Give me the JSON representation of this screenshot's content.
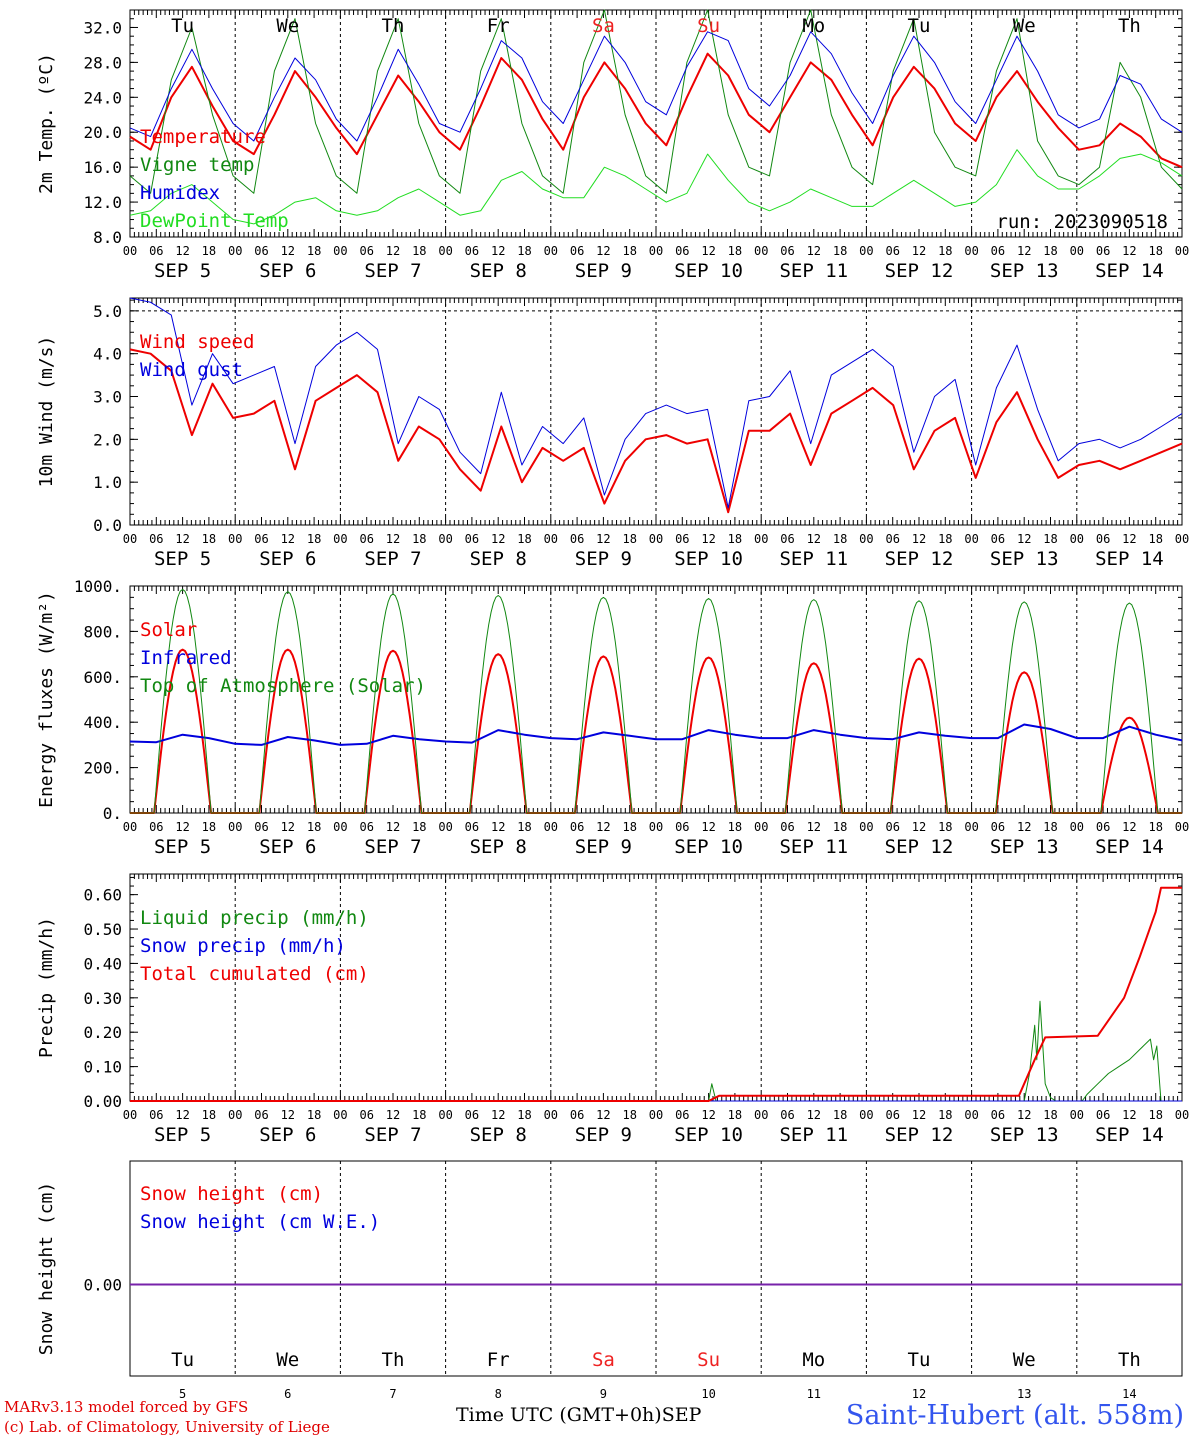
{
  "footer": {
    "credit_line1": "MARv3.13 model forced by GFS",
    "credit_line2": "(c) Lab. of Climatology, University of Liege",
    "time_axis_label": "Time UTC (GMT+0h)SEP",
    "station": "Saint-Hubert (alt. 558m)"
  },
  "colors": {
    "red": "#ee0000",
    "blue": "#0000dd",
    "dark_green": "#118811",
    "light_green": "#22dd22",
    "purple": "#7722aa",
    "weekend": "#ee2222"
  },
  "chart_data": [
    {
      "type": "line",
      "ylabel": "2m Temp. (ºC)",
      "ylim": [
        8,
        34
      ],
      "yticks": [
        "8.0",
        "12.0",
        "16.0",
        "20.0",
        "24.0",
        "28.0",
        "32.0"
      ],
      "hour_ticks": [
        "00",
        "06",
        "12",
        "18"
      ],
      "days": [
        "SEP  5",
        "SEP  6",
        "SEP  7",
        "SEP  8",
        "SEP  9",
        "SEP 10",
        "SEP 11",
        "SEP 12",
        "SEP 13",
        "SEP 14"
      ],
      "weekdays": [
        "Tu",
        "We",
        "Th",
        "Fr",
        "Sa",
        "Su",
        "Mo",
        "Tu",
        "We",
        "Th"
      ],
      "weekend_indices": [
        4,
        5
      ],
      "annotation": "run: 2023090518",
      "legend": [
        "Temperature",
        "Vigne temp",
        "Humidex",
        "DewPoint Temp"
      ],
      "series": [
        {
          "name": "Temperature",
          "color": "red",
          "width": 2,
          "values": [
            19.5,
            18,
            24,
            27.5,
            23,
            19,
            17.5,
            22,
            27,
            24,
            20.5,
            17.5,
            22,
            26.5,
            23.5,
            20,
            18,
            23,
            28.5,
            26,
            21.5,
            18,
            24,
            28,
            25,
            21,
            18.5,
            24,
            29,
            26.5,
            22,
            20,
            24,
            28,
            26,
            22,
            18.5,
            24,
            27.5,
            25,
            21,
            19,
            24,
            27,
            23.5,
            20.5,
            18,
            18.5,
            21,
            19.5,
            17,
            16
          ]
        },
        {
          "name": "Vigne temp",
          "color": "dark_green",
          "width": 1,
          "values": [
            15,
            13,
            26,
            32,
            22,
            15,
            13,
            27,
            33,
            21,
            15,
            13,
            27,
            33,
            21,
            15,
            13,
            27,
            33,
            21,
            15,
            13,
            28,
            34,
            22,
            15,
            13,
            28,
            34,
            22,
            16,
            15,
            28,
            34,
            22,
            16,
            14,
            27,
            33,
            20,
            16,
            15,
            27,
            33,
            19,
            15,
            14,
            16,
            28,
            24,
            16,
            13.5
          ]
        },
        {
          "name": "Humidex",
          "color": "blue",
          "width": 1,
          "values": [
            20.5,
            19.5,
            25,
            29.5,
            25,
            21,
            19,
            24,
            28.5,
            26,
            21.5,
            19,
            24,
            29.5,
            25.5,
            21,
            20,
            25,
            30.5,
            28.5,
            23.5,
            21,
            26,
            31,
            28,
            23.5,
            22,
            27.5,
            31.5,
            30.5,
            25,
            23,
            26.5,
            31.5,
            29,
            24.5,
            21,
            26.5,
            31,
            28,
            23.5,
            21,
            26,
            31,
            27,
            22,
            20.5,
            21.5,
            26.5,
            25.5,
            21.5,
            20
          ]
        },
        {
          "name": "DewPoint Temp",
          "color": "light_green",
          "width": 1,
          "values": [
            10.5,
            11,
            13,
            14,
            12,
            10,
            9.5,
            10.5,
            12,
            12.5,
            11,
            10.5,
            11,
            12.5,
            13.5,
            12,
            10.5,
            11,
            14.5,
            15.5,
            13.5,
            12.5,
            12.5,
            16,
            15,
            13.5,
            12,
            13,
            17.5,
            14.5,
            12,
            11,
            12,
            13.5,
            12.5,
            11.5,
            11.5,
            13,
            14.5,
            13,
            11.5,
            12,
            14,
            18,
            15,
            13.5,
            13.5,
            15,
            17,
            17.5,
            16.5,
            15
          ]
        }
      ]
    },
    {
      "type": "line",
      "ylabel": "10m Wind (m/s)",
      "ylim": [
        0,
        5.3
      ],
      "yticks": [
        "0.0",
        "1.0",
        "2.0",
        "3.0",
        "4.0",
        "5.0"
      ],
      "dashed_at": 5.0,
      "hour_ticks": [
        "00",
        "06",
        "12",
        "18"
      ],
      "days": [
        "SEP  5",
        "SEP  6",
        "SEP  7",
        "SEP  8",
        "SEP  9",
        "SEP 10",
        "SEP 11",
        "SEP 12",
        "SEP 13",
        "SEP 14"
      ],
      "legend": [
        "Wind speed",
        "Wind gust"
      ],
      "series": [
        {
          "name": "Wind speed",
          "color": "red",
          "width": 2,
          "values": [
            4.1,
            4.0,
            3.6,
            2.1,
            3.3,
            2.5,
            2.6,
            2.9,
            1.3,
            2.9,
            3.2,
            3.5,
            3.1,
            1.5,
            2.3,
            2.0,
            1.3,
            0.8,
            2.3,
            1.0,
            1.8,
            1.5,
            1.8,
            0.5,
            1.5,
            2.0,
            2.1,
            1.9,
            2.0,
            0.3,
            2.2,
            2.2,
            2.6,
            1.4,
            2.6,
            2.9,
            3.2,
            2.8,
            1.3,
            2.2,
            2.5,
            1.1,
            2.4,
            3.1,
            2.0,
            1.1,
            1.4,
            1.5,
            1.3,
            1.5,
            1.7,
            1.9
          ]
        },
        {
          "name": "Wind gust",
          "color": "blue",
          "width": 1,
          "values": [
            5.3,
            5.2,
            4.9,
            2.8,
            4.0,
            3.3,
            3.5,
            3.7,
            1.9,
            3.7,
            4.2,
            4.5,
            4.1,
            1.9,
            3.0,
            2.7,
            1.7,
            1.2,
            3.1,
            1.4,
            2.3,
            1.9,
            2.5,
            0.7,
            2.0,
            2.6,
            2.8,
            2.6,
            2.7,
            0.4,
            2.9,
            3.0,
            3.6,
            1.9,
            3.5,
            3.8,
            4.1,
            3.7,
            1.7,
            3.0,
            3.4,
            1.4,
            3.2,
            4.2,
            2.7,
            1.5,
            1.9,
            2.0,
            1.8,
            2.0,
            2.3,
            2.6
          ]
        }
      ]
    },
    {
      "type": "line",
      "ylabel": "Energy fluxes (W/m²)",
      "ylim": [
        0,
        1000
      ],
      "yticks": [
        "0.",
        "200.",
        "400.",
        "600.",
        "800.",
        "1000."
      ],
      "hour_ticks": [
        "00",
        "06",
        "12",
        "18"
      ],
      "days": [
        "SEP  5",
        "SEP  6",
        "SEP  7",
        "SEP  8",
        "SEP  9",
        "SEP 10",
        "SEP 11",
        "SEP 12",
        "SEP 13",
        "SEP 14"
      ],
      "legend": [
        "Solar",
        "Infrared",
        "Top of Atmosphere (Solar)"
      ],
      "solar_day_start_hour": 5.5,
      "solar_day_end_hour": 18.5,
      "series": [
        {
          "name": "Solar",
          "color": "red",
          "width": 2,
          "daily_peak": [
            720,
            720,
            715,
            700,
            690,
            685,
            660,
            680,
            620,
            420
          ]
        },
        {
          "name": "Infrared",
          "color": "blue",
          "width": 2,
          "values": [
            315,
            312,
            345,
            330,
            305,
            300,
            335,
            320,
            300,
            305,
            340,
            325,
            315,
            310,
            365,
            345,
            330,
            325,
            355,
            340,
            325,
            325,
            365,
            345,
            330,
            330,
            365,
            345,
            330,
            325,
            355,
            340,
            330,
            330,
            390,
            370,
            330,
            330,
            380,
            345,
            320
          ]
        },
        {
          "name": "Top of Atmosphere (Solar)",
          "color": "dark_green",
          "width": 1,
          "daily_peak": [
            985,
            975,
            965,
            958,
            950,
            945,
            940,
            935,
            930,
            925
          ]
        }
      ]
    },
    {
      "type": "line",
      "ylabel": "Precip (mm/h)",
      "ylim": [
        0,
        0.66
      ],
      "yticks": [
        "0.00",
        "0.10",
        "0.20",
        "0.30",
        "0.40",
        "0.50",
        "0.60"
      ],
      "hour_ticks": [
        "00",
        "06",
        "12",
        "18"
      ],
      "days": [
        "SEP  5",
        "SEP  6",
        "SEP  7",
        "SEP  8",
        "SEP  9",
        "SEP 10",
        "SEP 11",
        "SEP 12",
        "SEP 13",
        "SEP 14"
      ],
      "legend": [
        "Liquid precip (mm/h)",
        "Snow precip (mm/h)",
        "Total cumulated (cm)"
      ],
      "series": [
        {
          "name": "Liquid precip (mm/h)",
          "color": "dark_green",
          "width": 1,
          "points": [
            [
              0,
              0
            ],
            [
              5.5,
              0
            ],
            [
              5.53,
              0.05
            ],
            [
              5.57,
              0
            ],
            [
              8.5,
              0
            ],
            [
              8.55,
              0.08
            ],
            [
              8.6,
              0.22
            ],
            [
              8.62,
              0.12
            ],
            [
              8.65,
              0.29
            ],
            [
              8.7,
              0.05
            ],
            [
              8.75,
              0.01
            ],
            [
              8.8,
              0
            ],
            [
              9.05,
              0
            ],
            [
              9.1,
              0.02
            ],
            [
              9.2,
              0.05
            ],
            [
              9.3,
              0.08
            ],
            [
              9.4,
              0.1
            ],
            [
              9.5,
              0.12
            ],
            [
              9.6,
              0.15
            ],
            [
              9.7,
              0.18
            ],
            [
              9.73,
              0.12
            ],
            [
              9.76,
              0.16
            ],
            [
              9.8,
              0
            ],
            [
              10,
              0
            ]
          ]
        },
        {
          "name": "Snow precip (mm/h)",
          "color": "blue",
          "width": 1,
          "points": [
            [
              0,
              0
            ],
            [
              10,
              0
            ]
          ]
        },
        {
          "name": "Total cumulated (cm)",
          "color": "red",
          "width": 2,
          "points": [
            [
              0,
              0
            ],
            [
              5.5,
              0
            ],
            [
              5.6,
              0.015
            ],
            [
              8.45,
              0.015
            ],
            [
              8.6,
              0.12
            ],
            [
              8.7,
              0.185
            ],
            [
              9.2,
              0.19
            ],
            [
              9.45,
              0.3
            ],
            [
              9.6,
              0.42
            ],
            [
              9.75,
              0.55
            ],
            [
              9.8,
              0.62
            ],
            [
              10,
              0.62
            ]
          ]
        }
      ]
    },
    {
      "type": "line",
      "ylabel": "Snow height (cm)",
      "yticks": [
        "0.00"
      ],
      "days_numbers": [
        "5",
        "6",
        "7",
        "8",
        "9",
        "10",
        "11",
        "12",
        "13",
        "14"
      ],
      "weekdays": [
        "Tu",
        "We",
        "Th",
        "Fr",
        "Sa",
        "Su",
        "Mo",
        "Tu",
        "We",
        "Th"
      ],
      "weekend_indices": [
        4,
        5
      ],
      "legend": [
        "Snow height (cm)",
        "Snow height (cm W.E.)"
      ],
      "series": [
        {
          "name": "Snow height (cm)",
          "color": "purple",
          "width": 2,
          "points": [
            [
              0,
              0
            ],
            [
              10,
              0
            ]
          ]
        }
      ]
    }
  ]
}
